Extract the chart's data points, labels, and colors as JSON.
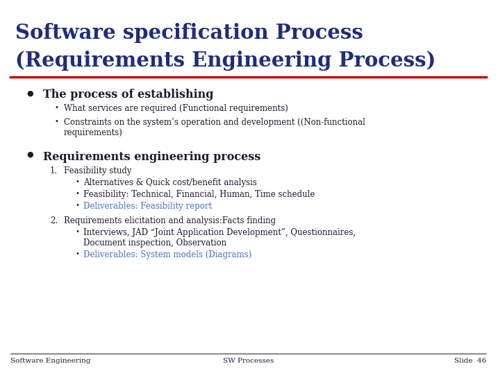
{
  "title_line1": "Software specification Process",
  "title_line2": "(Requirements Engineering Process)",
  "title_color": "#1F2D7B",
  "red_line_color": "#CC0000",
  "bg_color": "#FFFFFF",
  "text_color": "#1a1a2e",
  "blue_link_color": "#4472C4",
  "footer_left": "Software Engineering",
  "footer_center": "SW Processes",
  "footer_right": "Slide  46",
  "bullet1_header": "The process of establishing",
  "bullet1_sub": [
    "What services are required (Functional requirements)",
    "Constraints on the system’s operation and development ((Non-functional\nrequirements)"
  ],
  "bullet2_header": "Requirements engineering process",
  "numbered_items": [
    {
      "num": "1.",
      "text": "Feasibility study",
      "sub": [
        {
          "text": "Alternatives & Quick cost/benefit analysis",
          "color": "normal"
        },
        {
          "text": "Feasibility: Technical, Financial, Human, Time schedule",
          "color": "normal"
        },
        {
          "text": "Deliverables: Feasibility report",
          "color": "blue"
        }
      ]
    },
    {
      "num": "2.",
      "text": "Requirements elicitation and analysis:Facts finding",
      "sub": [
        {
          "text": "Interviews, JAD “Joint Application Development”, Questionnaires,\nDocument inspection, Observation",
          "color": "normal"
        },
        {
          "text": "Deliverables: System models (Diagrams)",
          "color": "blue"
        }
      ]
    }
  ]
}
